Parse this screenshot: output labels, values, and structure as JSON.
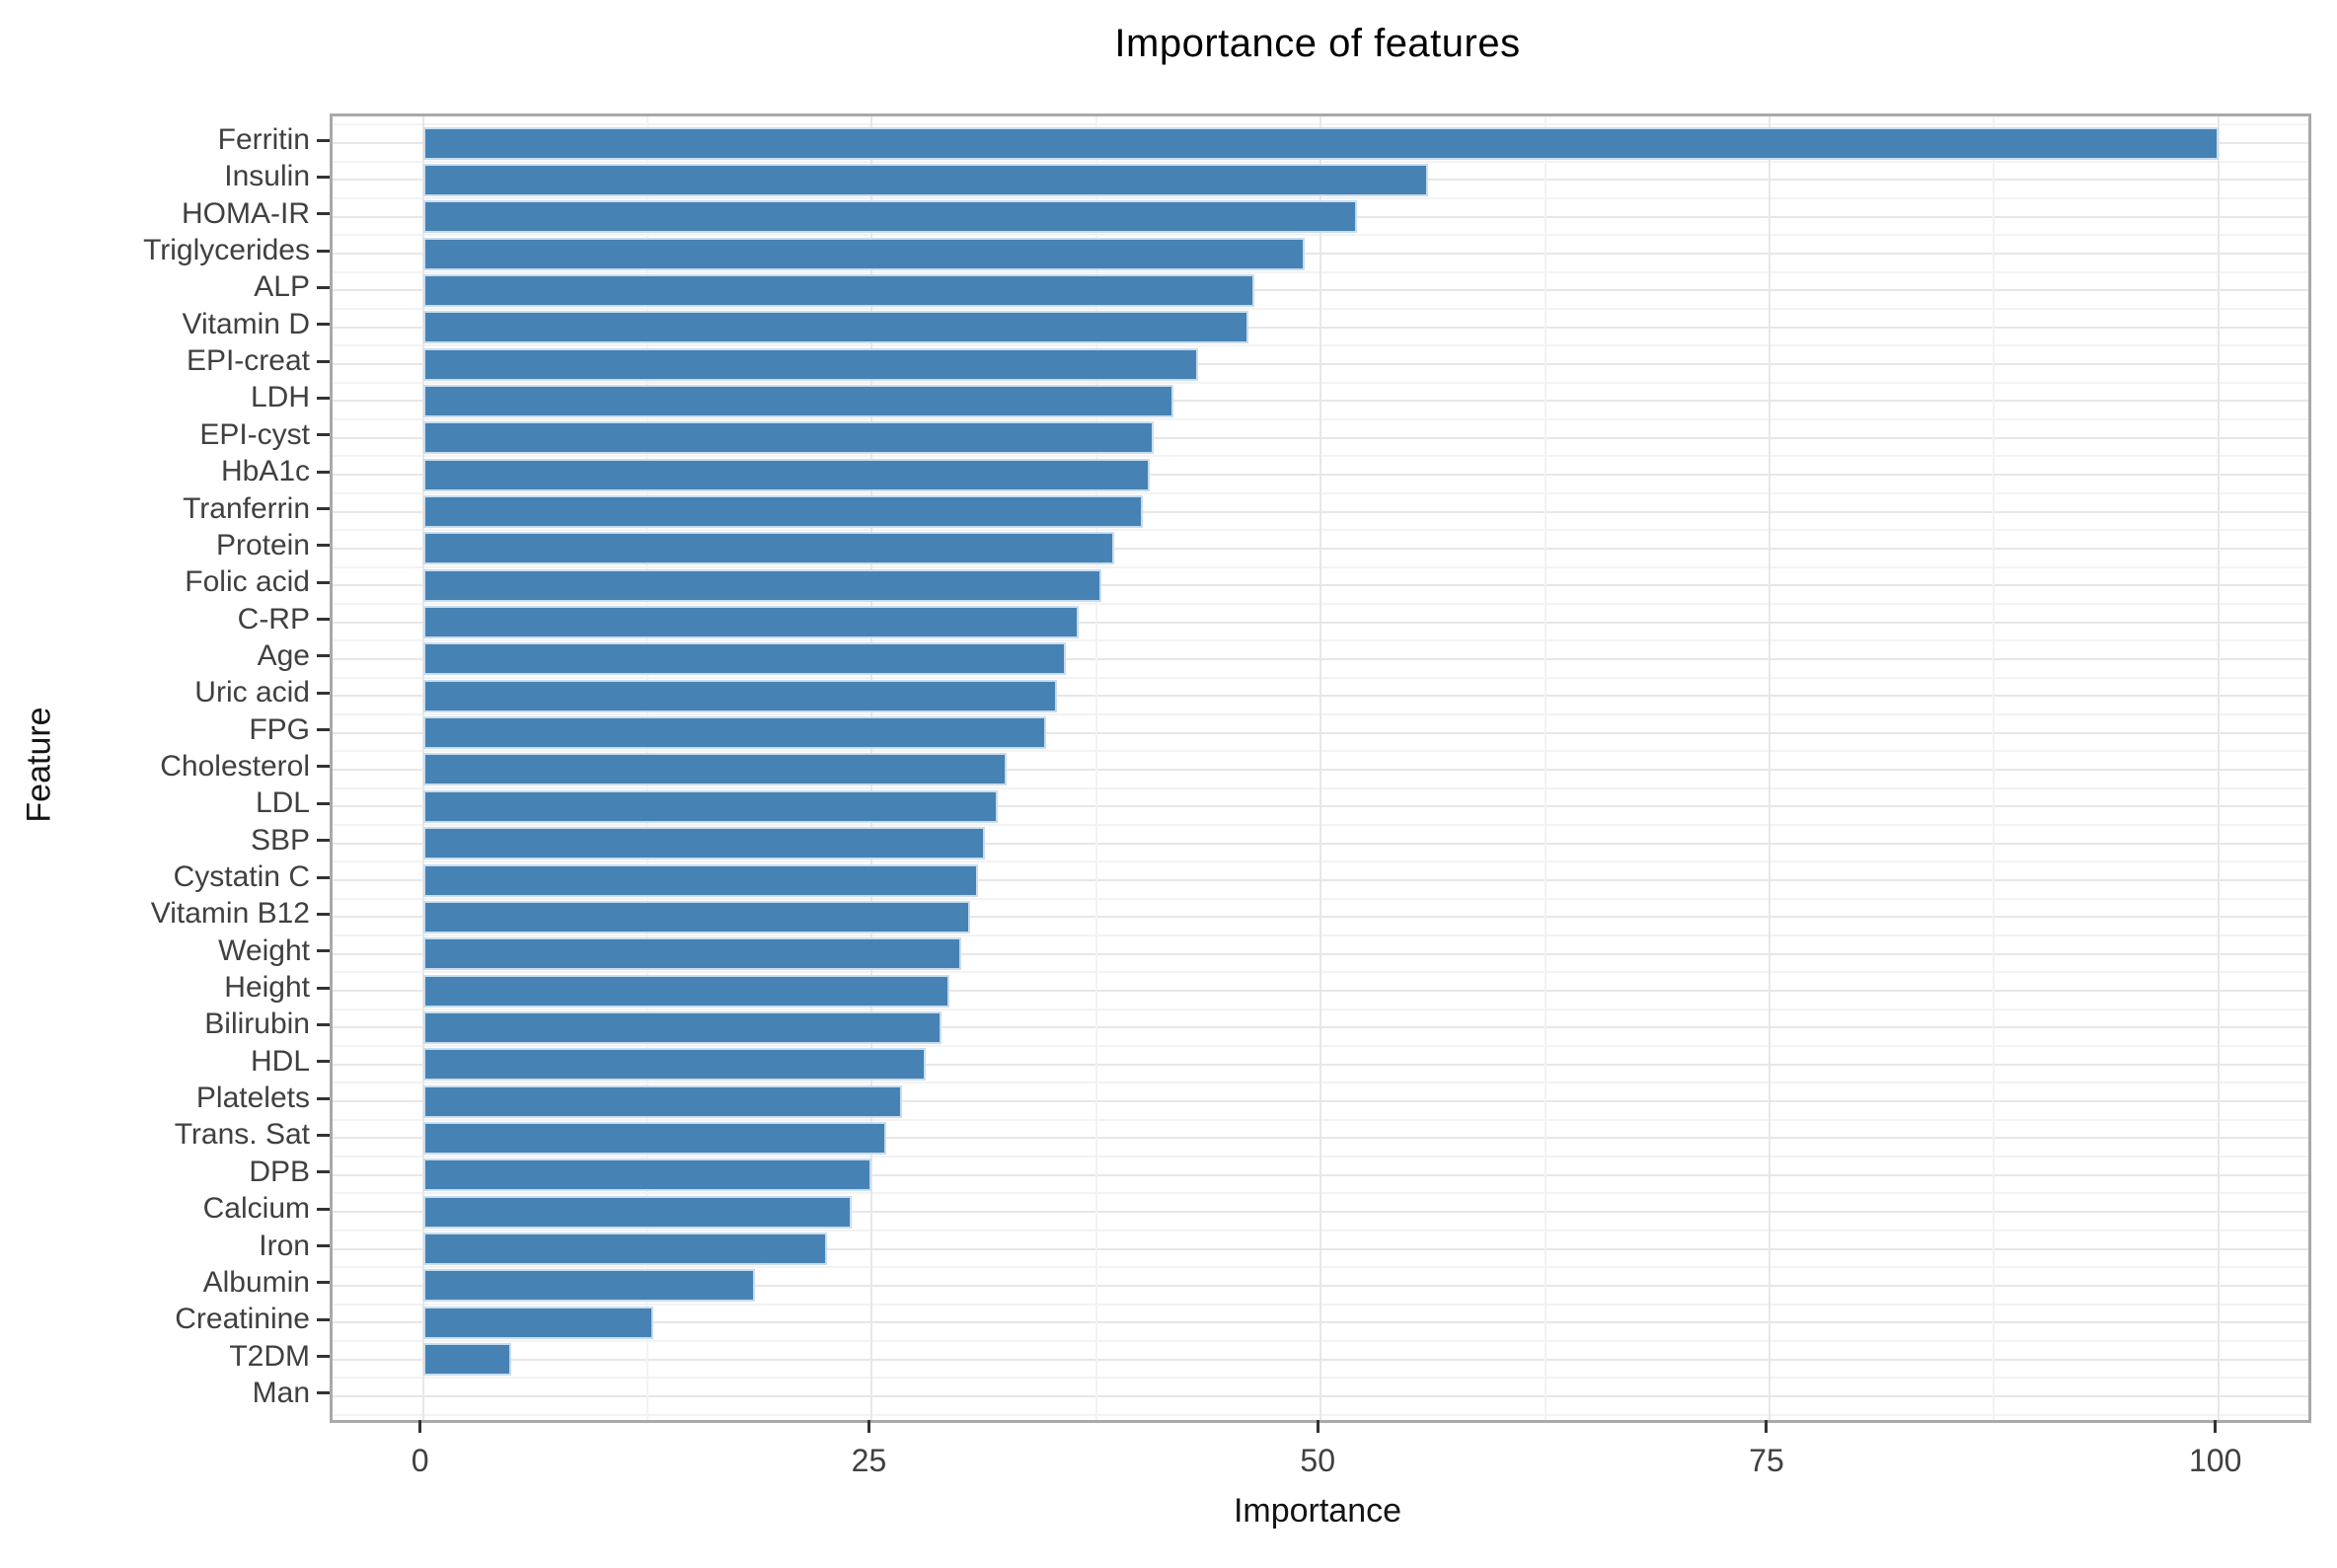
{
  "chart_data": {
    "type": "bar",
    "orientation": "horizontal",
    "title": "Importance of features",
    "xlabel": "Importance",
    "ylabel": "Feature",
    "xlim": [
      0,
      100
    ],
    "x_ticks": [
      0,
      25,
      50,
      75,
      100
    ],
    "x_minor_gridlines": [
      12.5,
      37.5,
      62.5,
      87.5
    ],
    "grid": "major and minor, light gray, on white panel",
    "legend": "none",
    "bar_color": "#4682b4",
    "bar_edge_color": "#c9ddee",
    "panel_border_color": "#a9a9a9",
    "categories": [
      "Ferritin",
      "Insulin",
      "HOMA-IR",
      "Triglycerides",
      "ALP",
      "Vitamin D",
      "EPI-creat",
      "LDH",
      "EPI-cyst",
      "HbA1c",
      "Tranferrin",
      "Protein",
      "Folic acid",
      "C-RP",
      "Age",
      "Uric acid",
      "FPG",
      "Cholesterol",
      "LDL",
      "SBP",
      "Cystatin C",
      "Vitamin B12",
      "Weight",
      "Height",
      "Bilirubin",
      "HDL",
      "Platelets",
      "Trans. Sat",
      "DPB",
      "Calcium",
      "Iron",
      "Albumin",
      "Creatinine",
      "T2DM",
      "Man"
    ],
    "values": [
      100,
      56,
      52,
      49.1,
      46.3,
      46,
      43.2,
      41.8,
      40.7,
      40.5,
      40.1,
      38.5,
      37.8,
      36.5,
      35.8,
      35.3,
      34.7,
      32.5,
      32,
      31.3,
      30.9,
      30.5,
      30,
      29.3,
      28.9,
      28,
      26.7,
      25.8,
      25,
      23.9,
      22.5,
      18.5,
      12.8,
      4.9,
      0
    ]
  }
}
